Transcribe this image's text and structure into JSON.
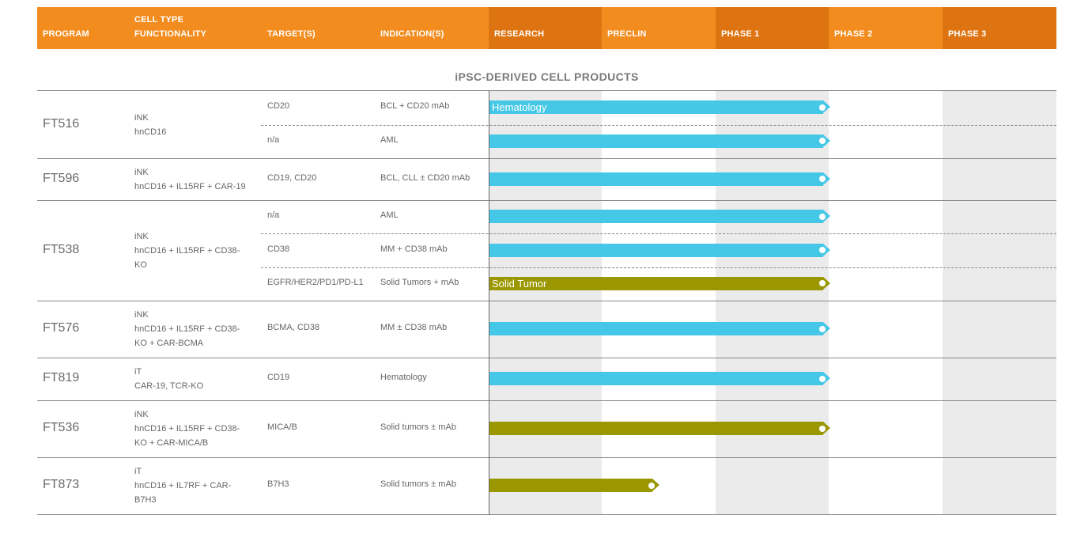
{
  "header": {
    "program": "PROGRAM",
    "cell_type_line1": "CELL TYPE",
    "cell_type_line2": "FUNCTIONALITY",
    "targets": "TARGET(S)",
    "indications": "INDICATION(S)",
    "stages": [
      "RESEARCH",
      "PRECLIN",
      "PHASE 1",
      "PHASE 2",
      "PHASE 3"
    ]
  },
  "section_title": "iPSC-DERIVED CELL PRODUCTS",
  "colors": {
    "header_orange": "#f28c1e",
    "stage_orange": "#de7411",
    "hematology_blue": "#45c8e7",
    "solid_tumor_olive": "#9b9700",
    "stage_shade": "#ebebeb"
  },
  "programs": [
    {
      "name": "FT516",
      "cell_type": [
        "iNK",
        "hnCD16"
      ],
      "rows": [
        {
          "target": "CD20",
          "indication": "BCL + CD20 mAb",
          "bar_label": "Hematology",
          "color": "blue",
          "stage_reached": 3
        },
        {
          "target": "n/a",
          "indication": "AML",
          "bar_label": "",
          "color": "blue",
          "stage_reached": 3
        }
      ]
    },
    {
      "name": "FT596",
      "cell_type": [
        "iNK",
        "hnCD16 + IL15RF + CAR-19"
      ],
      "rows": [
        {
          "target": "CD19, CD20",
          "indication": "BCL, CLL ± CD20 mAb",
          "bar_label": "",
          "color": "blue",
          "stage_reached": 3
        }
      ]
    },
    {
      "name": "FT538",
      "cell_type": [
        "iNK",
        "hnCD16 + IL15RF + CD38-",
        "KO"
      ],
      "rows": [
        {
          "target": "n/a",
          "indication": "AML",
          "bar_label": "",
          "color": "blue",
          "stage_reached": 3
        },
        {
          "target": "CD38",
          "indication": "MM + CD38 mAb",
          "bar_label": "",
          "color": "blue",
          "stage_reached": 3
        },
        {
          "target": "EGFR/HER2/PD1/PD-L1",
          "indication": "Solid Tumors + mAb",
          "bar_label": "Solid Tumor",
          "color": "olive",
          "stage_reached": 3
        }
      ]
    },
    {
      "name": "FT576",
      "cell_type": [
        "iNK",
        "hnCD16 + IL15RF + CD38-",
        "KO + CAR-BCMA"
      ],
      "rows": [
        {
          "target": "BCMA, CD38",
          "indication": "MM ± CD38 mAb",
          "bar_label": "",
          "color": "blue",
          "stage_reached": 3
        }
      ]
    },
    {
      "name": "FT819",
      "cell_type": [
        "iT",
        "CAR-19, TCR-KO"
      ],
      "rows": [
        {
          "target": "CD19",
          "indication": "Hematology",
          "bar_label": "",
          "color": "blue",
          "stage_reached": 3
        }
      ]
    },
    {
      "name": "FT536",
      "cell_type": [
        "iNK",
        "hnCD16 + IL15RF + CD38-",
        "KO + CAR-MICA/B"
      ],
      "rows": [
        {
          "target": "MICA/B",
          "indication": "Solid tumors ± mAb",
          "bar_label": "",
          "color": "olive",
          "stage_reached": 3
        }
      ]
    },
    {
      "name": "FT873",
      "cell_type": [
        "iT",
        "hnCD16 + IL7RF + CAR-",
        "B7H3"
      ],
      "rows": [
        {
          "target": "B7H3",
          "indication": "Solid tumors ± mAb",
          "bar_label": "",
          "color": "olive",
          "stage_reached": 1.5
        }
      ]
    }
  ]
}
